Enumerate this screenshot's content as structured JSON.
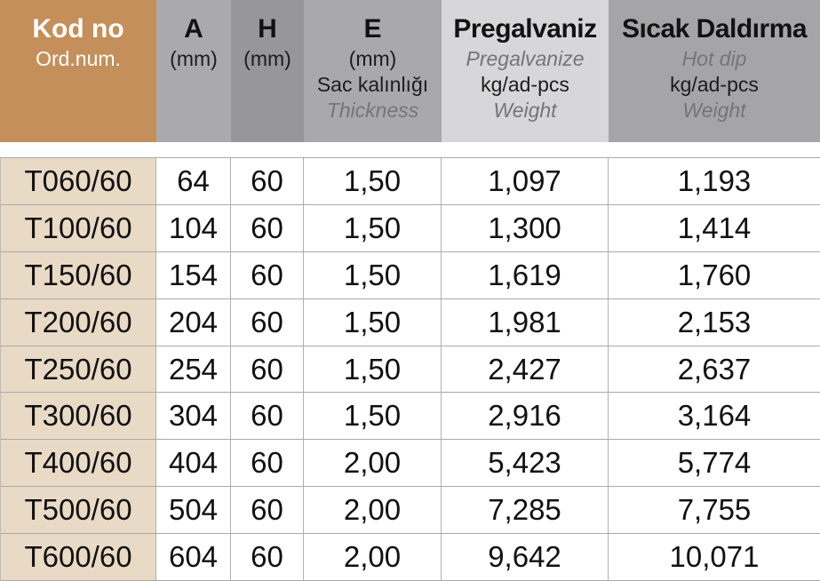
{
  "table": {
    "header": {
      "kod": {
        "title": "Kod no",
        "subtitle": "Ord.num."
      },
      "a": {
        "title": "A",
        "unit": "(mm)"
      },
      "h": {
        "title": "H",
        "unit": "(mm)"
      },
      "e": {
        "title": "E",
        "unit": "(mm)",
        "sub_tr": "Sac kalınlığı",
        "sub_en": "Thickness"
      },
      "pregalvaniz": {
        "title": "Pregalvaniz",
        "sub_en": "Pregalvanize",
        "unit": "kg/ad-pcs",
        "weight_label": "Weight"
      },
      "sicak": {
        "title": "Sıcak Daldırma",
        "sub_en": "Hot dip",
        "unit": "kg/ad-pcs",
        "weight_label": "Weight"
      }
    },
    "rows": [
      {
        "cells": [
          "T060/60",
          "64",
          "60",
          "1,50",
          "1,097",
          "1,193"
        ]
      },
      {
        "cells": [
          "T100/60",
          "104",
          "60",
          "1,50",
          "1,300",
          "1,414"
        ]
      },
      {
        "cells": [
          "T150/60",
          "154",
          "60",
          "1,50",
          "1,619",
          "1,760"
        ]
      },
      {
        "cells": [
          "T200/60",
          "204",
          "60",
          "1,50",
          "1,981",
          "2,153"
        ]
      },
      {
        "cells": [
          "T250/60",
          "254",
          "60",
          "1,50",
          "2,427",
          "2,637"
        ]
      },
      {
        "cells": [
          "T300/60",
          "304",
          "60",
          "1,50",
          "2,916",
          "3,164"
        ]
      },
      {
        "cells": [
          "T400/60",
          "404",
          "60",
          "2,00",
          "5,423",
          "5,774"
        ]
      },
      {
        "cells": [
          "T500/60",
          "504",
          "60",
          "2,00",
          "7,285",
          "7,755"
        ]
      },
      {
        "cells": [
          "T600/60",
          "604",
          "60",
          "2,00",
          "9,642",
          "10,071"
        ]
      }
    ]
  },
  "colors": {
    "header_brown": "#c48f5a",
    "row_code_tan": "#e9dac6",
    "header_gray_a": "#aaaaad",
    "header_gray_h": "#97979a",
    "header_gray_e": "#a9a9ac",
    "header_gray_pregalvaniz": "#d7d7d9",
    "header_gray_sicak": "#a5a5a8",
    "grid_line": "#b0b0b0",
    "subtext_gray": "#757578"
  }
}
